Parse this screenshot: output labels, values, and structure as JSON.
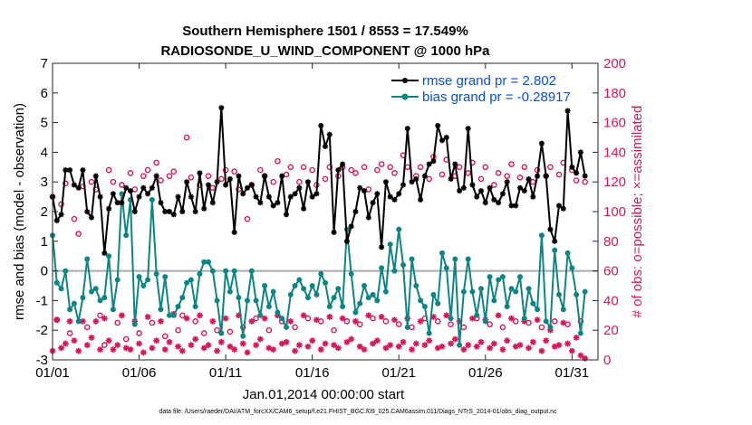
{
  "chart_data": {
    "type": "line",
    "title_line1": "Southern Hemisphere 1501 / 8553 = 17.549%",
    "title_line2": "RADIOSONDE_U_WIND_COMPONENT @ 1000 hPa",
    "xlabel": "Jan.01,2014 00:00:00 start",
    "ylabel_left": "rmse and bias (model - observation)",
    "ylabel_right": "# of obs: o=possible; ×=assimilated",
    "footnote": "data file: /Users/raeder/DAI/ATM_forcXX/CAM6_setup/f.e21.FHIST_BGC.f09_025.CAM6assim.011/Diags_NTrS_2014-01/obs_diag_output.nc",
    "x_ticks": [
      "01/01",
      "01/06",
      "01/11",
      "01/16",
      "01/21",
      "01/26",
      "01/31"
    ],
    "x_tick_days": [
      1,
      6,
      11,
      16,
      21,
      26,
      31
    ],
    "xlim": [
      1,
      32.5
    ],
    "ylim_left": [
      -3,
      7
    ],
    "y_ticks_left": [
      "-3",
      "-2",
      "-1",
      "0",
      "1",
      "2",
      "3",
      "4",
      "5",
      "6",
      "7"
    ],
    "ylim_right": [
      0,
      200
    ],
    "y_ticks_right": [
      "0",
      "20",
      "40",
      "60",
      "80",
      "100",
      "120",
      "140",
      "160",
      "180",
      "200"
    ],
    "zero_line": 0,
    "colors": {
      "rmse": "#000000",
      "bias": "#0f8484",
      "obs": "#d6175c",
      "legend_text": "#0a4fd8",
      "zero_line": "#aaaaaa"
    },
    "legend_placement": "top-right",
    "x_days": [
      1.0,
      1.25,
      1.5,
      1.75,
      2.0,
      2.25,
      2.5,
      2.75,
      3.0,
      3.25,
      3.5,
      3.75,
      4.0,
      4.25,
      4.5,
      4.75,
      5.0,
      5.25,
      5.5,
      5.75,
      6.0,
      6.25,
      6.5,
      6.75,
      7.0,
      7.25,
      7.5,
      7.75,
      8.0,
      8.25,
      8.5,
      8.75,
      9.0,
      9.25,
      9.5,
      9.75,
      10.0,
      10.25,
      10.5,
      10.75,
      11.0,
      11.25,
      11.5,
      11.75,
      12.0,
      12.25,
      12.5,
      12.75,
      13.0,
      13.25,
      13.5,
      13.75,
      14.0,
      14.25,
      14.5,
      14.75,
      15.0,
      15.25,
      15.5,
      15.75,
      16.0,
      16.25,
      16.5,
      16.75,
      17.0,
      17.25,
      17.5,
      17.75,
      18.0,
      18.25,
      18.5,
      18.75,
      19.0,
      19.25,
      19.5,
      19.75,
      20.0,
      20.25,
      20.5,
      20.75,
      21.0,
      21.25,
      21.5,
      21.75,
      22.0,
      22.25,
      22.5,
      22.75,
      23.0,
      23.25,
      23.5,
      23.75,
      24.0,
      24.25,
      24.5,
      24.75,
      25.0,
      25.25,
      25.5,
      25.75,
      26.0,
      26.25,
      26.5,
      26.75,
      27.0,
      27.25,
      27.5,
      27.75,
      28.0,
      28.25,
      28.5,
      28.75,
      29.0,
      29.25,
      29.5,
      29.75,
      30.0,
      30.25,
      30.5,
      30.75,
      31.0,
      31.25,
      31.5,
      31.75
    ],
    "series": [
      {
        "name": "rmse grand pr = 2.802",
        "axis": "left",
        "marker": "asterisk",
        "values": [
          2.5,
          1.7,
          1.9,
          3.4,
          3.4,
          2.9,
          2.8,
          3.4,
          2.0,
          1.8,
          3.2,
          2.5,
          0.6,
          2.1,
          2.6,
          2.3,
          2.3,
          2.8,
          2.7,
          2.0,
          2.5,
          2.8,
          2.6,
          2.8,
          3.2,
          2.3,
          2.0,
          2.0,
          1.9,
          2.5,
          2.0,
          3.0,
          2.5,
          2.0,
          3.3,
          2.1,
          2.9,
          2.3,
          3.0,
          5.5,
          2.9,
          3.1,
          1.3,
          3.2,
          2.6,
          2.8,
          2.9,
          2.5,
          2.3,
          3.2,
          2.5,
          2.2,
          2.3,
          3.2,
          1.9,
          2.5,
          2.6,
          2.8,
          2.1,
          3.0,
          2.5,
          2.6,
          4.9,
          4.2,
          4.6,
          1.3,
          3.4,
          3.6,
          1.0,
          1.5,
          2.0,
          2.8,
          2.7,
          1.8,
          2.3,
          2.6,
          0.8,
          3.0,
          2.5,
          2.4,
          2.6,
          2.9,
          4.8,
          3.0,
          3.1,
          2.4,
          3.2,
          3.6,
          3.7,
          4.9,
          4.4,
          4.5,
          3.1,
          3.6,
          2.7,
          2.8,
          4.8,
          2.9,
          2.5,
          2.7,
          2.3,
          2.8,
          2.4,
          2.3,
          2.6,
          3.0,
          2.2,
          2.2,
          2.8,
          2.7,
          3.1,
          2.5,
          3.2,
          4.3,
          3.2,
          1.4,
          1.0,
          2.2,
          2.1,
          5.4,
          3.5,
          3.3,
          4.0,
          3.2
        ]
      },
      {
        "name": "bias grand pr = -0.28917",
        "axis": "left",
        "marker": "dot",
        "values": [
          1.2,
          -0.4,
          -0.6,
          0.0,
          -1.3,
          -1.1,
          -1.7,
          -0.9,
          0.4,
          -0.7,
          -0.6,
          -1.0,
          -0.9,
          0.5,
          -1.3,
          -0.3,
          2.6,
          1.2,
          2.4,
          -1.8,
          -0.2,
          -0.5,
          -0.3,
          2.4,
          -0.1,
          -1.3,
          -0.2,
          -1.5,
          -1.5,
          -1.2,
          -0.9,
          -0.4,
          -0.3,
          -1.2,
          -0.1,
          0.3,
          0.3,
          0.0,
          -1.0,
          -2.1,
          0.0,
          -0.7,
          0.0,
          -0.9,
          -2.2,
          -1.0,
          0.0,
          -1.0,
          -1.5,
          -0.5,
          -1.2,
          -0.7,
          -1.4,
          -1.6,
          -1.9,
          -0.8,
          -0.5,
          -0.3,
          -0.6,
          -0.9,
          -0.5,
          -0.8,
          -0.1,
          -0.4,
          -1.2,
          -0.9,
          -0.6,
          -1.2,
          1.4,
          -0.1,
          -1.4,
          -1.1,
          -0.5,
          -0.9,
          -0.8,
          -1.0,
          0.1,
          -0.7,
          0.9,
          0.0,
          1.4,
          0.2,
          -1.9,
          0.4,
          -0.5,
          -1.0,
          -1.2,
          -2.1,
          -0.8,
          -1.1,
          0.6,
          0.1,
          -1.6,
          0.4,
          -2.5,
          -0.7,
          0.4,
          -0.7,
          -1.5,
          -0.6,
          -1.7,
          -0.2,
          -1.0,
          -0.3,
          -0.2,
          -1.2,
          -0.6,
          -0.7,
          -0.2,
          -1.6,
          -0.6,
          -1.1,
          -1.3,
          1.2,
          -1.7,
          -1.9,
          0.7,
          -0.8,
          -1.3,
          0.6,
          0.1,
          -0.8,
          -2.1,
          -0.7
        ]
      },
      {
        "name": "possible",
        "axis": "right",
        "marker": "circle",
        "values": [
          110,
          27,
          105,
          119,
          18,
          95,
          85,
          117,
          22,
          120,
          115,
          30,
          10,
          128,
          120,
          25,
          118,
          14,
          126,
          115,
          18,
          124,
          128,
          25,
          133,
          121,
          16,
          124,
          127,
          20,
          30,
          150,
          123,
          26,
          118,
          18,
          124,
          116,
          20,
          122,
          128,
          19,
          127,
          115,
          22,
          95,
          118,
          28,
          128,
          124,
          20,
          120,
          134,
          26,
          125,
          130,
          22,
          120,
          130,
          28,
          128,
          118,
          26,
          122,
          130,
          20,
          124,
          130,
          26,
          128,
          126,
          24,
          130,
          115,
          28,
          128,
          132,
          26,
          130,
          126,
          24,
          138,
          130,
          22,
          124,
          130,
          28,
          122,
          137,
          26,
          125,
          135,
          24,
          124,
          130,
          22,
          126,
          133,
          28,
          122,
          130,
          24,
          118,
          126,
          22,
          124,
          132,
          26,
          123,
          130,
          25,
          120,
          128,
          22,
          124,
          130,
          26,
          125,
          133,
          24,
          128,
          121,
          26,
          120
        ]
      },
      {
        "name": "assimilated",
        "axis": "right",
        "marker": "asterisk",
        "values": [
          6,
          27,
          8,
          11,
          26,
          13,
          6,
          26,
          10,
          15,
          26,
          7,
          28,
          13,
          7,
          10,
          30,
          8,
          7,
          26,
          11,
          5,
          29,
          8,
          13,
          26,
          7,
          12,
          31,
          9,
          6,
          28,
          10,
          14,
          30,
          8,
          10,
          26,
          6,
          12,
          28,
          9,
          7,
          30,
          11,
          5,
          26,
          10,
          14,
          28,
          8,
          7,
          30,
          11,
          12,
          26,
          6,
          10,
          30,
          9,
          13,
          27,
          7,
          11,
          29,
          10,
          8,
          28,
          12,
          14,
          26,
          9,
          7,
          30,
          11,
          13,
          29,
          8,
          10,
          27,
          9,
          12,
          28,
          7,
          11,
          26,
          10,
          13,
          29,
          8,
          9,
          30,
          11,
          14,
          26,
          7,
          10,
          28,
          9,
          12,
          27,
          8,
          11,
          30,
          7,
          13,
          28,
          9,
          10,
          26,
          8,
          12,
          27,
          6,
          13,
          20,
          9,
          10,
          25,
          11,
          6,
          15,
          3,
          1
        ]
      }
    ]
  }
}
